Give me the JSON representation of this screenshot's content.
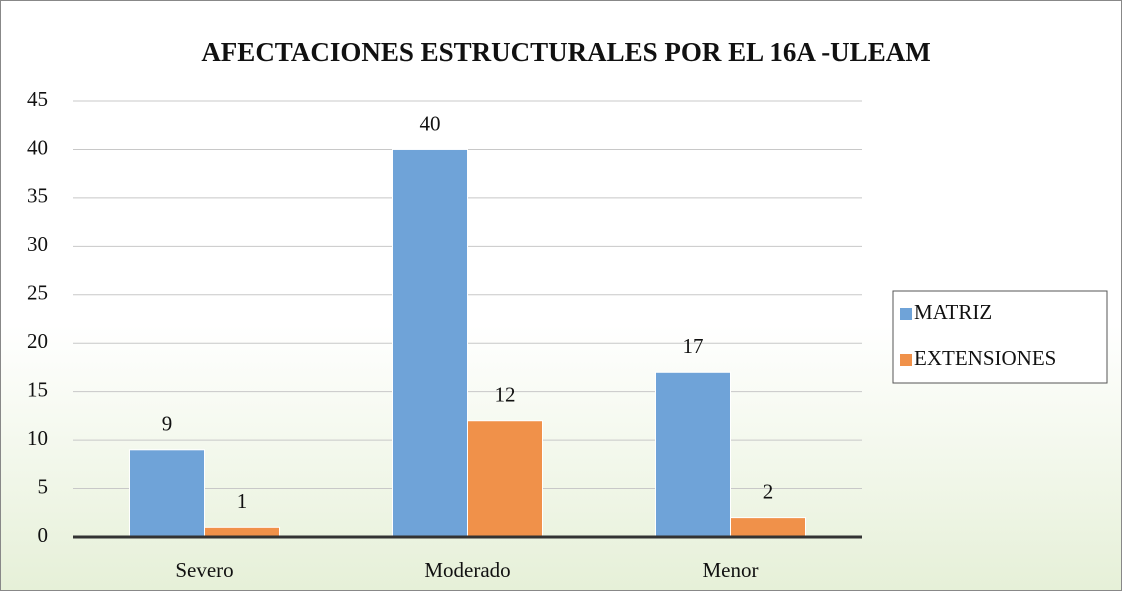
{
  "chart_data": {
    "type": "bar",
    "title": "AFECTACIONES ESTRUCTURALES POR EL 16A -ULEAM",
    "categories": [
      "Severo",
      "Moderado",
      "Menor"
    ],
    "series": [
      {
        "name": "MATRIZ",
        "color": "#6fa3d8",
        "values": [
          9,
          40,
          17
        ]
      },
      {
        "name": "EXTENSIONES",
        "color": "#f0914a",
        "values": [
          1,
          12,
          2
        ]
      }
    ],
    "ylim": [
      0,
      45
    ],
    "yticks": [
      0,
      5,
      10,
      15,
      20,
      25,
      30,
      35,
      40,
      45
    ],
    "grid": true,
    "legend": "right"
  }
}
